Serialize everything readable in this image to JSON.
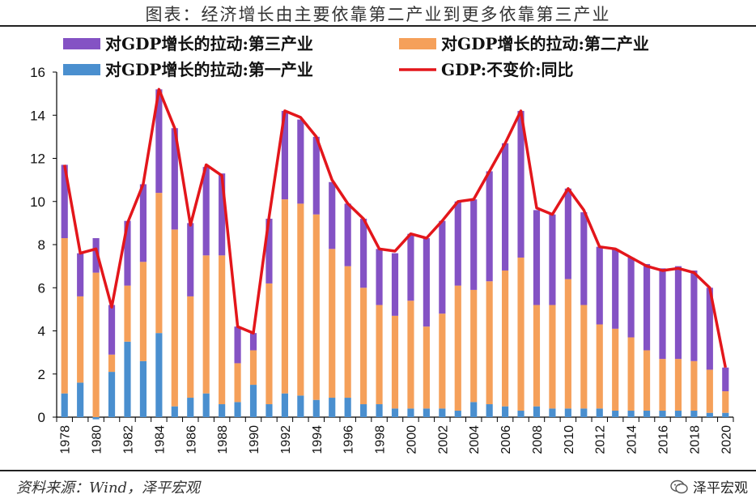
{
  "title": "图表：经济增长由主要依靠第二产业到更多依靠第三产业",
  "source": "资料来源：Wind，泽平宏观",
  "watermark": "泽平宏观",
  "chart_data": {
    "type": "bar",
    "stacked": true,
    "x": [
      1978,
      1979,
      1980,
      1981,
      1982,
      1983,
      1984,
      1985,
      1986,
      1987,
      1988,
      1989,
      1990,
      1991,
      1992,
      1993,
      1994,
      1995,
      1996,
      1997,
      1998,
      1999,
      2000,
      2001,
      2002,
      2003,
      2004,
      2005,
      2006,
      2007,
      2008,
      2009,
      2010,
      2011,
      2012,
      2013,
      2014,
      2015,
      2016,
      2017,
      2018,
      2019,
      2020
    ],
    "x_tick_labels": [
      "1978",
      "1980",
      "1982",
      "1984",
      "1986",
      "1988",
      "1990",
      "1992",
      "1994",
      "1996",
      "1998",
      "2000",
      "2002",
      "2004",
      "2006",
      "2008",
      "2010",
      "2012",
      "2014",
      "2016",
      "2018",
      "2020"
    ],
    "y_ticks": [
      0,
      2,
      4,
      6,
      8,
      10,
      12,
      14,
      16
    ],
    "ylim": [
      0,
      16
    ],
    "series": [
      {
        "name": "对GDP增长的拉动:第一产业",
        "kind": "bar",
        "color": "#4a8fcf",
        "values": [
          1.1,
          1.6,
          -0.1,
          2.1,
          3.5,
          2.6,
          3.9,
          0.5,
          0.9,
          1.1,
          0.6,
          0.7,
          1.5,
          0.6,
          1.1,
          1.0,
          0.8,
          0.9,
          0.9,
          0.6,
          0.6,
          0.4,
          0.4,
          0.4,
          0.4,
          0.3,
          0.7,
          0.6,
          0.5,
          0.3,
          0.5,
          0.4,
          0.4,
          0.4,
          0.4,
          0.3,
          0.3,
          0.3,
          0.3,
          0.3,
          0.3,
          0.2,
          0.2
        ]
      },
      {
        "name": "对GDP增长的拉动:第二产业",
        "kind": "bar",
        "color": "#f5a05a",
        "values": [
          7.2,
          4.0,
          6.7,
          0.8,
          2.6,
          4.6,
          6.5,
          8.2,
          4.7,
          6.4,
          6.9,
          1.8,
          1.6,
          5.6,
          9.0,
          8.9,
          8.6,
          6.9,
          6.1,
          5.4,
          4.6,
          4.3,
          5.0,
          3.8,
          4.4,
          5.8,
          5.2,
          5.7,
          6.3,
          7.1,
          4.7,
          4.8,
          6.0,
          4.8,
          3.9,
          3.8,
          3.4,
          2.8,
          2.4,
          2.4,
          2.3,
          2.0,
          1.0
        ]
      },
      {
        "name": "对GDP增长的拉动:第三产业",
        "kind": "bar",
        "color": "#8452c4",
        "values": [
          3.4,
          2.0,
          1.6,
          2.3,
          3.0,
          3.6,
          4.8,
          4.7,
          3.4,
          4.1,
          3.8,
          1.7,
          0.8,
          3.0,
          4.1,
          3.9,
          3.6,
          3.1,
          2.9,
          3.2,
          2.6,
          2.9,
          3.1,
          4.1,
          4.3,
          3.9,
          4.2,
          5.1,
          5.9,
          6.8,
          4.4,
          4.2,
          4.2,
          4.3,
          3.6,
          3.7,
          3.7,
          4.0,
          4.2,
          4.3,
          4.2,
          3.8,
          1.1
        ]
      },
      {
        "name": "GDP:不变价:同比",
        "kind": "line",
        "color": "#e3161b",
        "values": [
          11.7,
          7.6,
          7.8,
          5.1,
          9.0,
          10.8,
          15.2,
          13.4,
          8.9,
          11.7,
          11.2,
          4.2,
          3.9,
          9.3,
          14.2,
          13.9,
          13.0,
          11.0,
          9.9,
          9.2,
          7.8,
          7.7,
          8.5,
          8.3,
          9.1,
          10.0,
          10.1,
          11.4,
          12.7,
          14.2,
          9.7,
          9.4,
          10.6,
          9.6,
          7.9,
          7.8,
          7.4,
          7.0,
          6.8,
          6.9,
          6.7,
          6.0,
          2.3
        ]
      }
    ],
    "legend_placement": "top",
    "grid": false
  }
}
